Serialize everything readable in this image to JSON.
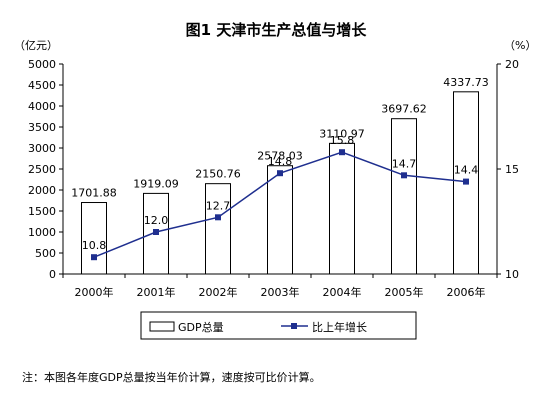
{
  "chart_data": {
    "type": "bar+line",
    "title": "图1 天津市生产总值与增长",
    "categories": [
      "2000年",
      "2001年",
      "2002年",
      "2003年",
      "2004年",
      "2005年",
      "2006年"
    ],
    "series": [
      {
        "name": "GDP总量",
        "type": "bar",
        "axis": "left",
        "values": [
          1701.88,
          1919.09,
          2150.76,
          2578.03,
          3110.97,
          3697.62,
          4337.73
        ],
        "labels": [
          "1701.88",
          "1919.09",
          "2150.76",
          "2578.03",
          "3110.97",
          "3697.62",
          "4337.73"
        ]
      },
      {
        "name": "比上年增长",
        "type": "line",
        "axis": "right",
        "values": [
          10.8,
          12.0,
          12.7,
          14.8,
          15.8,
          14.7,
          14.4
        ],
        "labels": [
          "10.8",
          "12.0",
          "12.7",
          "14.8",
          "15.8",
          "14.7",
          "14.4"
        ],
        "color": "#1f2f8f"
      }
    ],
    "y_left": {
      "unit": "（亿元）",
      "min": 0,
      "max": 5000,
      "ticks": [
        "0",
        "500",
        "1000",
        "1500",
        "2000",
        "2500",
        "3000",
        "3500",
        "4000",
        "4500",
        "5000"
      ]
    },
    "y_right": {
      "unit": "（%）",
      "min": 10,
      "max": 20,
      "ticks": [
        "10",
        "15",
        "20"
      ]
    },
    "grid": false,
    "legend": "bottom"
  },
  "note": "注：本图各年度GDP总量按当年价计算，速度按可比价计算。"
}
